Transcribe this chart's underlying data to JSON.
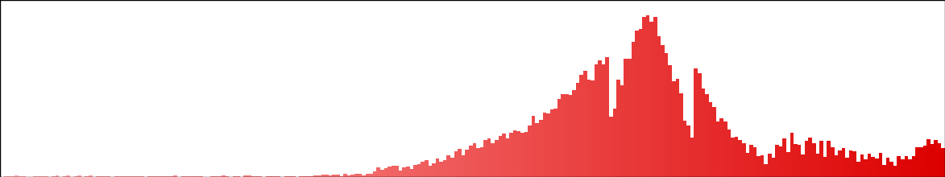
{
  "n_bins": 256,
  "background_color": "#ffffff",
  "bar_color_low": "#ffaaaa",
  "bar_color_high": "#dd0000",
  "figsize": [
    11.73,
    2.2
  ],
  "dpi": 100,
  "seed": 7,
  "heights": []
}
